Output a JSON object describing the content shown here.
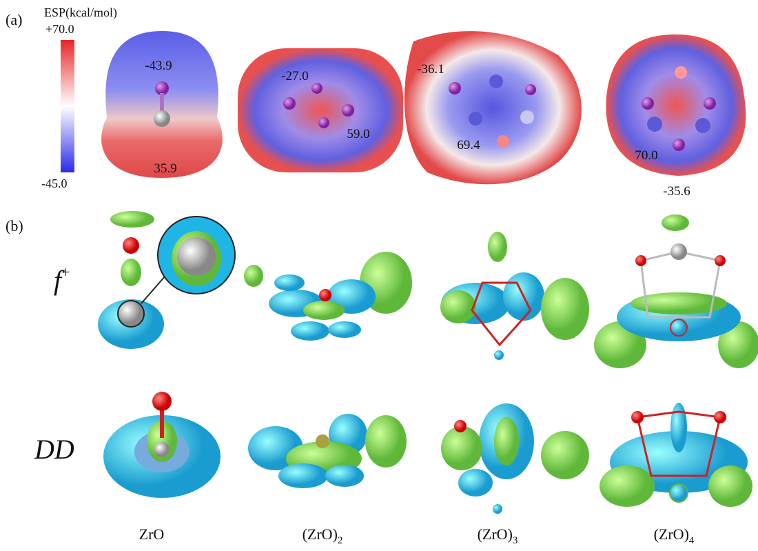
{
  "panel_a": {
    "label": "(a)",
    "colorbar": {
      "title": "ESP(kcal/mol)",
      "max_label": "+70.0",
      "min_label": "-45.0"
    },
    "molecules": [
      {
        "values": [
          "-43.9",
          "35.9"
        ]
      },
      {
        "values": [
          "-27.0",
          "59.0"
        ]
      },
      {
        "values": [
          "-36.1",
          "69.4"
        ]
      },
      {
        "values": [
          "70.0",
          "-35.6"
        ]
      }
    ]
  },
  "panel_b": {
    "label": "(b)",
    "rows": [
      {
        "name": "f",
        "sup": "+"
      },
      {
        "name": "DD"
      }
    ],
    "columns": [
      {
        "name": "ZrO"
      },
      {
        "name": "(ZrO)",
        "sub": "2"
      },
      {
        "name": "(ZrO)",
        "sub": "3"
      },
      {
        "name": "(ZrO)",
        "sub": "4"
      }
    ]
  }
}
